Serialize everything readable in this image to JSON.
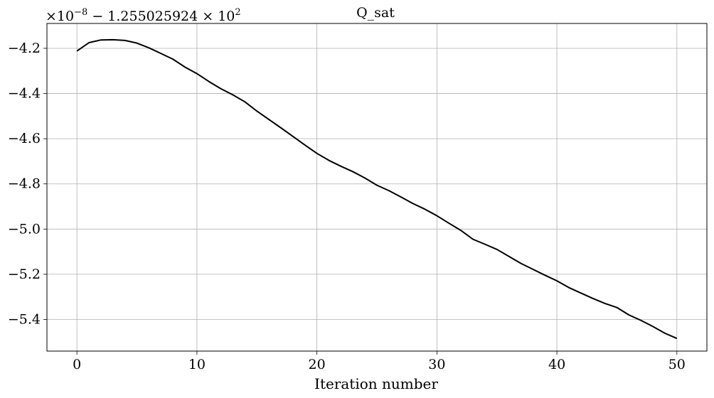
{
  "chart_data": {
    "type": "line",
    "title": "Q_sat",
    "xlabel": "Iteration number",
    "ylabel": "",
    "offset_text": {
      "multiplier": "×10",
      "multiplier_exp": "−8",
      "offset": " − 1.255025924 × 10",
      "offset_exp": "2"
    },
    "xlim": [
      -2.5,
      52.5
    ],
    "ylim": [
      -5.54,
      -4.09
    ],
    "xticks": [
      0,
      10,
      20,
      30,
      40,
      50
    ],
    "yticks": [
      -5.4,
      -5.2,
      -5.0,
      -4.8,
      -4.6,
      -4.4,
      -4.2
    ],
    "xtick_labels": [
      "0",
      "10",
      "20",
      "30",
      "40",
      "50"
    ],
    "ytick_labels": [
      "−5.4",
      "−5.2",
      "−5.0",
      "−4.8",
      "−4.6",
      "−4.4",
      "−4.2"
    ],
    "grid": true,
    "series": [
      {
        "color": "#000000",
        "x": [
          0,
          1,
          2,
          3,
          4,
          5,
          6,
          7,
          8,
          9,
          10,
          11,
          12,
          13,
          14,
          15,
          16,
          17,
          18,
          19,
          20,
          21,
          22,
          23,
          24,
          25,
          26,
          27,
          28,
          29,
          30,
          31,
          32,
          33,
          34,
          35,
          36,
          37,
          38,
          39,
          40,
          41,
          42,
          43,
          44,
          45,
          46,
          47,
          48,
          49,
          50
        ],
        "y": [
          -4.212,
          -4.175,
          -4.163,
          -4.162,
          -4.165,
          -4.177,
          -4.198,
          -4.223,
          -4.248,
          -4.283,
          -4.312,
          -4.347,
          -4.379,
          -4.406,
          -4.437,
          -4.478,
          -4.515,
          -4.552,
          -4.59,
          -4.628,
          -4.665,
          -4.696,
          -4.722,
          -4.746,
          -4.774,
          -4.806,
          -4.83,
          -4.858,
          -4.887,
          -4.912,
          -4.941,
          -4.974,
          -5.006,
          -5.045,
          -5.067,
          -5.09,
          -5.121,
          -5.152,
          -5.178,
          -5.204,
          -5.229,
          -5.259,
          -5.283,
          -5.307,
          -5.329,
          -5.347,
          -5.38,
          -5.404,
          -5.431,
          -5.461,
          -5.484
        ]
      }
    ]
  }
}
